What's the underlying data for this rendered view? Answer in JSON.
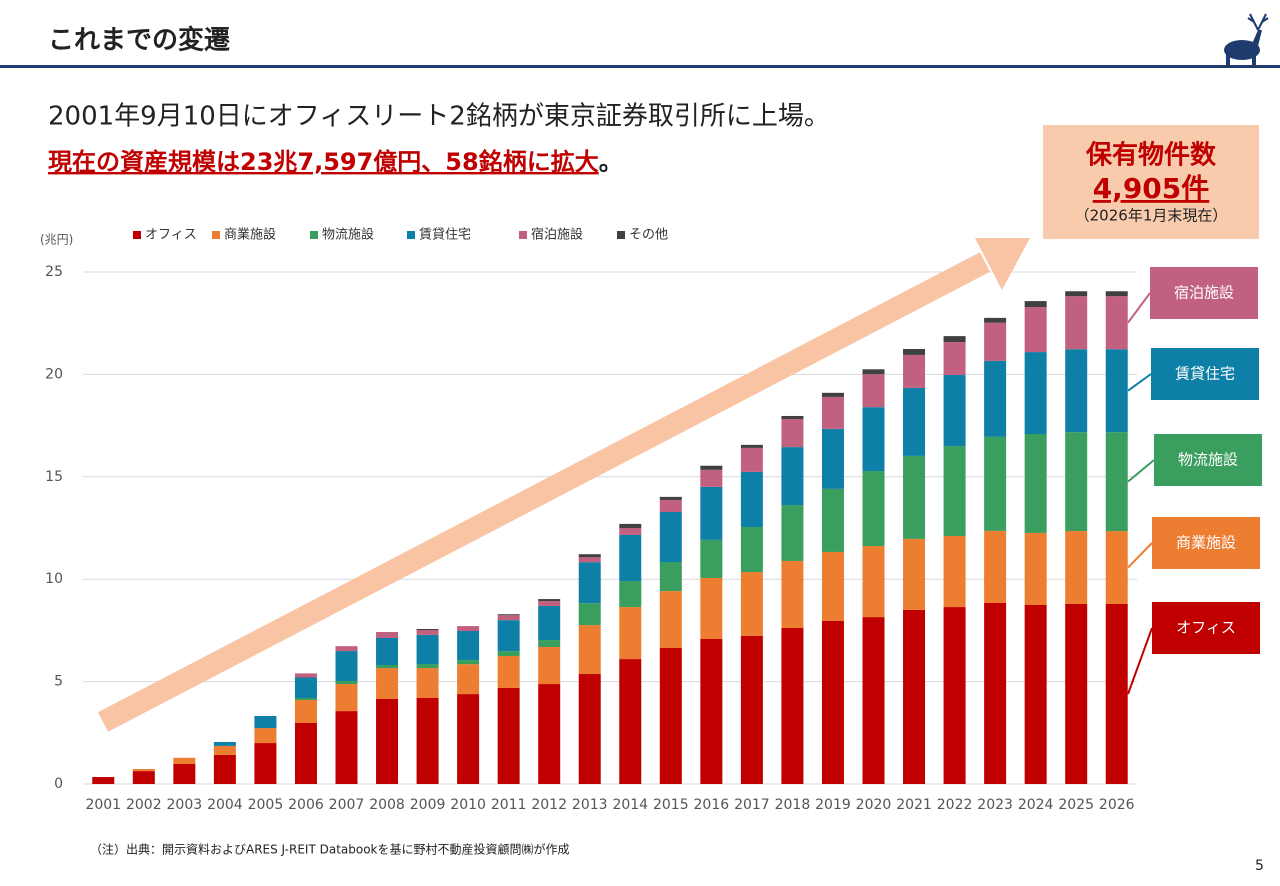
{
  "header": {
    "title": "これまでの変遷"
  },
  "headline": {
    "line1": "2001年9月10日にオフィスリート2銘柄が東京証券取引所に上場。",
    "emphasis": "現在の資産規模は23兆7,597億円、58銘柄に拡大",
    "emphasis_end": "。"
  },
  "callout": {
    "title": "保有物件数",
    "value": "4,905件",
    "note": "（2026年1月末現在）"
  },
  "footnote": "（注）出典：開示資料およびARES J-REIT Databookを基に野村不動産投資顧問㈱が作成",
  "page_number": "5",
  "chart_data": {
    "type": "stacked-bar",
    "y_unit": "(兆円)",
    "categories": [
      "2001",
      "2002",
      "2003",
      "2004",
      "2005",
      "2006",
      "2007",
      "2008",
      "2009",
      "2010",
      "2011",
      "2012",
      "2013",
      "2014",
      "2015",
      "2016",
      "2017",
      "2018",
      "2019",
      "2020",
      "2021",
      "2022",
      "2023",
      "2024",
      "2025",
      "2026"
    ],
    "series": [
      {
        "name": "オフィス",
        "color": "#c00000",
        "values": [
          0.34,
          0.63,
          0.98,
          1.42,
          2.0,
          2.98,
          3.56,
          4.15,
          4.2,
          4.39,
          4.69,
          4.88,
          5.37,
          6.1,
          6.64,
          7.08,
          7.23,
          7.62,
          7.96,
          8.15,
          8.5,
          8.64,
          8.84,
          8.74,
          8.79,
          8.79
        ]
      },
      {
        "name": "商業施設",
        "color": "#ed7d31",
        "values": [
          0,
          0.1,
          0.3,
          0.44,
          0.73,
          1.12,
          1.32,
          1.51,
          1.46,
          1.46,
          1.56,
          1.81,
          2.39,
          2.54,
          2.78,
          2.98,
          3.12,
          3.27,
          3.37,
          3.47,
          3.47,
          3.47,
          3.52,
          3.52,
          3.56,
          3.56
        ]
      },
      {
        "name": "物流施設",
        "color": "#3a9e5e",
        "values": [
          0,
          0,
          0,
          0,
          0,
          0.1,
          0.15,
          0.15,
          0.2,
          0.2,
          0.24,
          0.34,
          1.07,
          1.27,
          1.42,
          1.86,
          2.2,
          2.73,
          3.08,
          3.66,
          4.05,
          4.39,
          4.59,
          4.83,
          4.83,
          4.83
        ]
      },
      {
        "name": "賃貸住宅",
        "color": "#0e7fa6",
        "values": [
          0,
          0,
          0,
          0.19,
          0.59,
          1.0,
          1.46,
          1.32,
          1.42,
          1.42,
          1.51,
          1.66,
          2.0,
          2.25,
          2.44,
          2.59,
          2.69,
          2.83,
          2.93,
          3.12,
          3.32,
          3.47,
          3.71,
          4.0,
          4.05,
          4.05
        ]
      },
      {
        "name": "宿泊施設",
        "color": "#c1607f",
        "values": [
          0,
          0,
          0,
          0,
          0,
          0.2,
          0.24,
          0.29,
          0.24,
          0.24,
          0.24,
          0.24,
          0.24,
          0.34,
          0.59,
          0.83,
          1.17,
          1.37,
          1.56,
          1.61,
          1.61,
          1.61,
          1.86,
          2.2,
          2.59,
          2.59
        ]
      },
      {
        "name": "その他",
        "color": "#404040",
        "values": [
          0,
          0,
          0,
          0,
          0,
          0,
          0,
          0,
          0.05,
          0,
          0.05,
          0.1,
          0.15,
          0.2,
          0.15,
          0.2,
          0.15,
          0.15,
          0.2,
          0.24,
          0.29,
          0.29,
          0.24,
          0.29,
          0.24,
          0.24
        ]
      }
    ],
    "ylim": [
      0,
      25
    ],
    "yticks": [
      0,
      5,
      10,
      15,
      20,
      25
    ],
    "grid": true,
    "legend": "top"
  }
}
